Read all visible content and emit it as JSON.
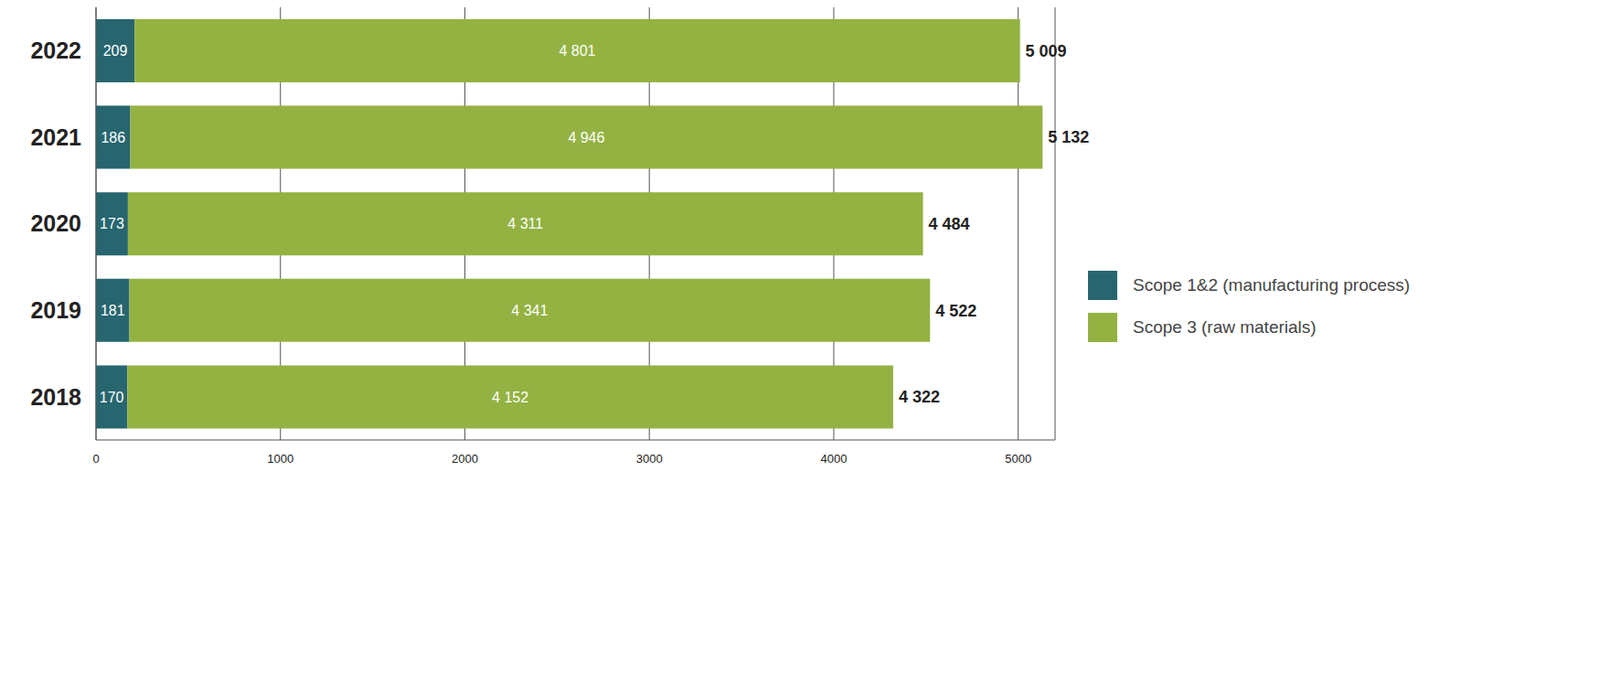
{
  "chart_data": {
    "type": "bar",
    "orientation": "horizontal",
    "stacked": true,
    "data_labels": true,
    "grid": true,
    "legend": "right",
    "categories": [
      "2022",
      "2021",
      "2020",
      "2019",
      "2018"
    ],
    "series": [
      {
        "name": "Scope 1&2 (manufacturing process)",
        "color": "#27666f",
        "values": [
          209,
          186,
          173,
          181,
          170
        ]
      },
      {
        "name": "Scope 3 (raw materials)",
        "color": "#93b242",
        "values": [
          4801,
          4946,
          4311,
          4341,
          4152
        ],
        "value_labels": [
          "4 801",
          "4 946",
          "4 311",
          "4 341",
          "4 152"
        ]
      }
    ],
    "totals": {
      "values": [
        5009,
        5132,
        4484,
        4522,
        4322
      ],
      "value_labels": [
        "5 009",
        "5 132",
        "4 484",
        "4 522",
        "4 322"
      ]
    },
    "xlim": [
      0,
      5200
    ],
    "xticks": [
      0,
      1000,
      2000,
      3000,
      4000,
      5000
    ]
  }
}
